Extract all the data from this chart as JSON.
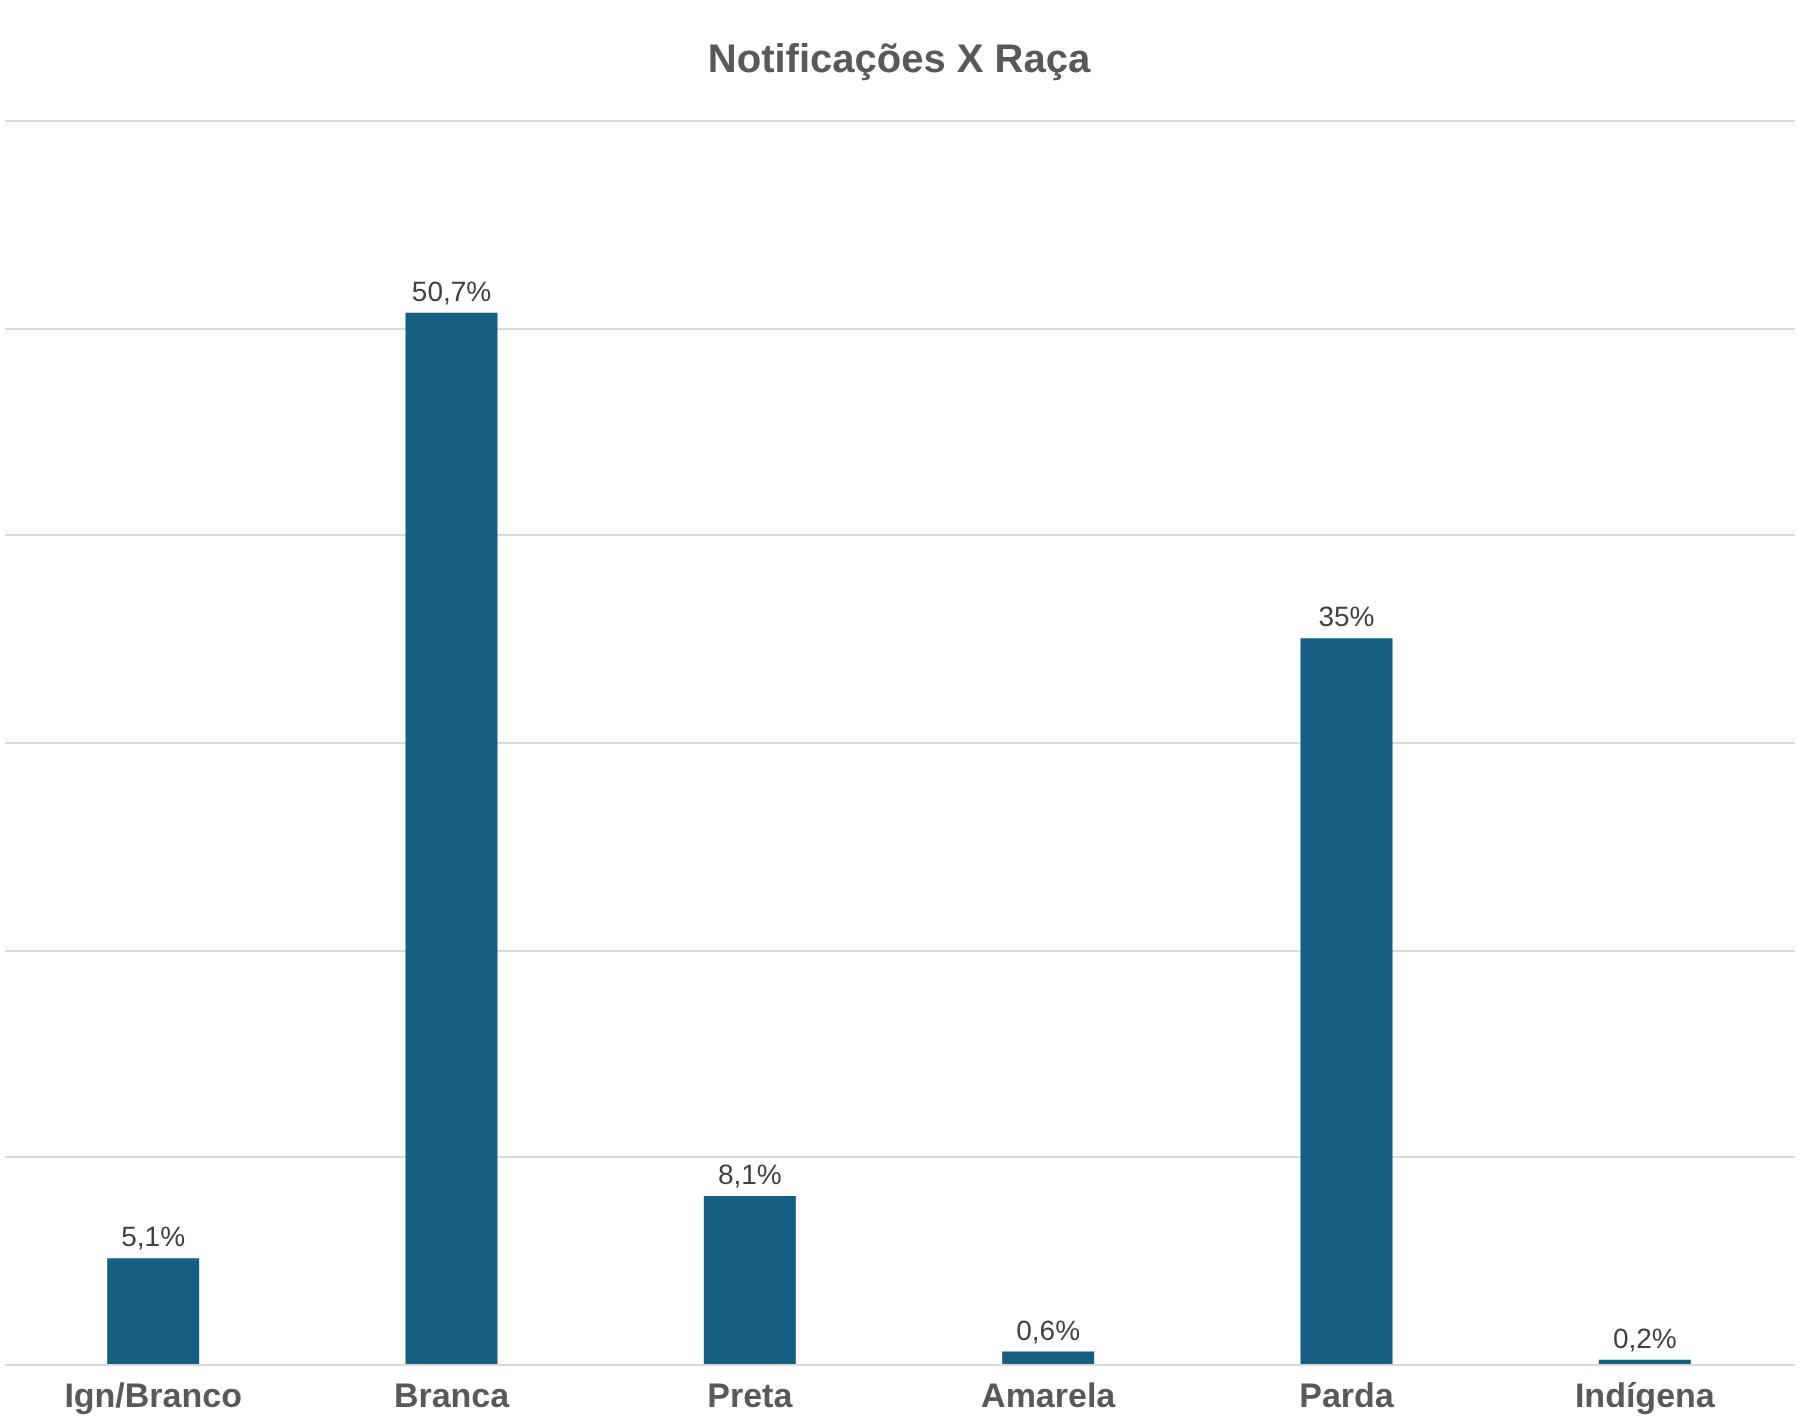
{
  "chart_data": {
    "type": "bar",
    "title": "Notificações  X Raça",
    "categories": [
      "Ign/Branco",
      "Branca",
      "Preta",
      "Amarela",
      "Parda",
      "Indígena"
    ],
    "values": [
      5.1,
      50.7,
      8.1,
      0.6,
      35,
      0.2
    ],
    "value_labels": [
      "5,1%",
      "50,7%",
      "8,1%",
      "0,6%",
      "35%",
      "0,2%"
    ],
    "color": "#175f82",
    "ylim": [
      0,
      60
    ],
    "yticks": [
      {
        "value": 0,
        "label": null
      },
      {
        "value": 10,
        "label": null
      },
      {
        "value": 20,
        "label": null
      },
      {
        "value": 30,
        "label": null
      },
      {
        "value": 40,
        "label": null
      },
      {
        "value": 50,
        "label": null
      },
      {
        "value": 60,
        "label": null
      }
    ],
    "grid": "y",
    "tick_labels": "x"
  }
}
